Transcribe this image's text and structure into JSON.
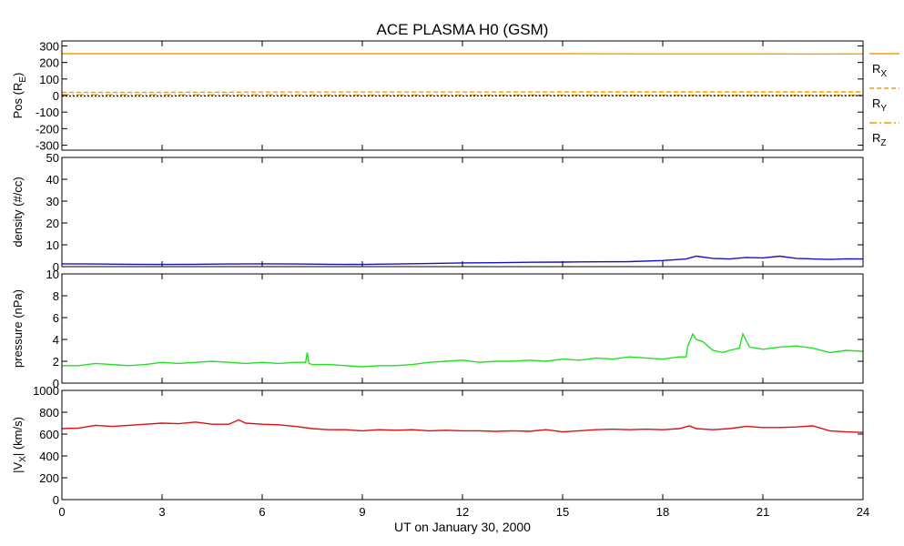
{
  "chart_data": {
    "title": "ACE PLASMA H0 (GSM)",
    "xlabel": "UT on January 30, 2000",
    "xlim": [
      0,
      24
    ],
    "xticks": [
      "0",
      "3",
      "6",
      "9",
      "12",
      "15",
      "18",
      "21",
      "24"
    ],
    "xtick_values": [
      0,
      3,
      6,
      9,
      12,
      15,
      18,
      21,
      24
    ],
    "panels": [
      {
        "type": "line",
        "id": "pos",
        "ylabel": "Pos (R",
        "ylabel_sub": "E",
        "ylabel_close": ")",
        "ylim": [
          -330,
          330
        ],
        "yticks": [
          300,
          200,
          100,
          0,
          -100,
          -200,
          -300
        ],
        "ytick_labels": [
          "300",
          "200",
          "100",
          "0",
          "-100",
          "-200",
          "-300"
        ],
        "series": [
          {
            "name": "R",
            "sub": "X",
            "color": "#f0a000",
            "dash": "",
            "x": [
              0,
              3,
              6,
              9,
              12,
              15,
              18,
              21,
              22.5,
              24
            ],
            "y": [
              253,
              253,
              253,
              253,
              253,
              253,
              252,
              252,
              251,
              252
            ]
          },
          {
            "name": "R",
            "sub": "Y",
            "color": "#f0a000",
            "dash": "5,3",
            "x": [
              0,
              3,
              6,
              9,
              12,
              15,
              18,
              21,
              24
            ],
            "y": [
              20,
              20,
              21,
              21,
              21,
              22,
              22,
              22,
              22
            ]
          },
          {
            "name": "R",
            "sub": "Z",
            "color": "#f0a000",
            "dash": "8,3,2,3",
            "x": [
              0,
              3,
              6,
              9,
              12,
              15,
              18,
              21,
              24
            ],
            "y": [
              5,
              5,
              5,
              4,
              4,
              4,
              3,
              3,
              3
            ]
          },
          {
            "name": "",
            "sub": "",
            "color": "#202020",
            "dash": "2,2",
            "x": [
              0,
              3,
              6,
              9,
              12,
              15,
              18,
              21,
              24
            ],
            "y": [
              -3,
              -3,
              -2,
              -2,
              -2,
              -1,
              -1,
              -1,
              -1
            ]
          }
        ]
      },
      {
        "type": "line",
        "id": "density",
        "ylabel": "density (#/cc)",
        "ylim": [
          0,
          50
        ],
        "yticks": [
          0,
          10,
          20,
          30,
          40,
          50
        ],
        "ytick_labels": [
          "0",
          "10",
          "20",
          "30",
          "40",
          "50"
        ],
        "series": [
          {
            "name": "",
            "color": "#1a10c8",
            "x": [
              0,
              1,
              2,
              3,
              4,
              5,
              6,
              7,
              8,
              9,
              10,
              11,
              12,
              13,
              14,
              15,
              16,
              17,
              18,
              18.7,
              19,
              19.5,
              20,
              20.5,
              21,
              21.5,
              22,
              22.5,
              23,
              23.5,
              24
            ],
            "y": [
              1.3,
              1.2,
              1.1,
              1.0,
              1.1,
              1.2,
              1.3,
              1.2,
              1.1,
              1.0,
              1.2,
              1.4,
              1.7,
              1.8,
              2.0,
              2.1,
              2.2,
              2.3,
              2.8,
              3.5,
              4.8,
              3.8,
              3.5,
              4.2,
              4.0,
              4.8,
              3.8,
              3.5,
              3.3,
              3.6,
              3.5
            ]
          }
        ]
      },
      {
        "type": "line",
        "id": "pressure",
        "ylabel": "pressure (nPa)",
        "ylim": [
          0,
          10
        ],
        "yticks": [
          0,
          2,
          4,
          6,
          8,
          10
        ],
        "ytick_labels": [
          "0",
          "2",
          "4",
          "6",
          "8",
          "10"
        ],
        "series": [
          {
            "name": "",
            "color": "#22e022",
            "x": [
              0,
              0.5,
              1,
              1.5,
              2,
              2.5,
              3,
              3.5,
              4,
              4.5,
              5,
              5.5,
              6,
              6.5,
              7,
              7.3,
              7.35,
              7.4,
              7.5,
              8,
              8.5,
              9,
              9.5,
              10,
              10.5,
              11,
              11.5,
              12,
              12.5,
              13,
              13.5,
              14,
              14.5,
              15,
              15.5,
              16,
              16.5,
              17,
              17.5,
              18,
              18.5,
              18.7,
              18.75,
              18.9,
              19.0,
              19.2,
              19.5,
              19.8,
              20.0,
              20.3,
              20.4,
              20.6,
              21,
              21.5,
              22,
              22.5,
              23,
              23.5,
              24
            ],
            "y": [
              1.6,
              1.6,
              1.8,
              1.7,
              1.6,
              1.7,
              1.9,
              1.8,
              1.9,
              2.0,
              1.9,
              1.8,
              1.9,
              1.8,
              1.9,
              1.9,
              2.8,
              1.8,
              1.7,
              1.7,
              1.6,
              1.5,
              1.6,
              1.6,
              1.7,
              1.9,
              2.0,
              2.1,
              1.9,
              2.0,
              2.0,
              2.1,
              2.0,
              2.2,
              2.1,
              2.3,
              2.2,
              2.4,
              2.3,
              2.2,
              2.4,
              2.4,
              3.4,
              4.5,
              4.0,
              3.8,
              3.0,
              2.8,
              3.0,
              3.2,
              4.5,
              3.3,
              3.1,
              3.3,
              3.4,
              3.2,
              2.8,
              3.0,
              2.9
            ]
          }
        ]
      },
      {
        "type": "line",
        "id": "vx",
        "ylabel": "|V",
        "ylabel_sub": "X",
        "ylabel_close": "| (km/s)",
        "ylim": [
          0,
          1000
        ],
        "yticks": [
          0,
          200,
          400,
          600,
          800,
          1000
        ],
        "ytick_labels": [
          "0",
          "200",
          "400",
          "600",
          "800",
          "1000"
        ],
        "series": [
          {
            "name": "",
            "color": "#e01010",
            "x": [
              0,
              0.5,
              1,
              1.5,
              2,
              2.5,
              3,
              3.5,
              4,
              4.5,
              5,
              5.3,
              5.5,
              6,
              6.5,
              7,
              7.5,
              8,
              8.5,
              9,
              9.5,
              10,
              10.5,
              11,
              11.5,
              12,
              12.5,
              13,
              13.5,
              14,
              14.5,
              15,
              15.5,
              16,
              16.5,
              17,
              17.5,
              18,
              18.5,
              18.8,
              19,
              19.5,
              20,
              20.5,
              21,
              21.5,
              22,
              22.5,
              23,
              23.5,
              24
            ],
            "y": [
              650,
              655,
              680,
              670,
              680,
              690,
              700,
              695,
              710,
              690,
              690,
              730,
              700,
              690,
              685,
              670,
              650,
              640,
              640,
              630,
              640,
              635,
              640,
              630,
              635,
              630,
              630,
              625,
              630,
              625,
              640,
              620,
              630,
              640,
              645,
              640,
              645,
              640,
              650,
              675,
              650,
              640,
              650,
              670,
              660,
              660,
              665,
              675,
              630,
              620,
              615
            ]
          }
        ]
      }
    ],
    "legend": [
      {
        "label": "R",
        "sub": "X",
        "dash": ""
      },
      {
        "label": "R",
        "sub": "Y",
        "dash": "5,3"
      },
      {
        "label": "R",
        "sub": "Z",
        "dash": "8,3,2,3"
      }
    ],
    "legend_color": "#f0a000"
  }
}
